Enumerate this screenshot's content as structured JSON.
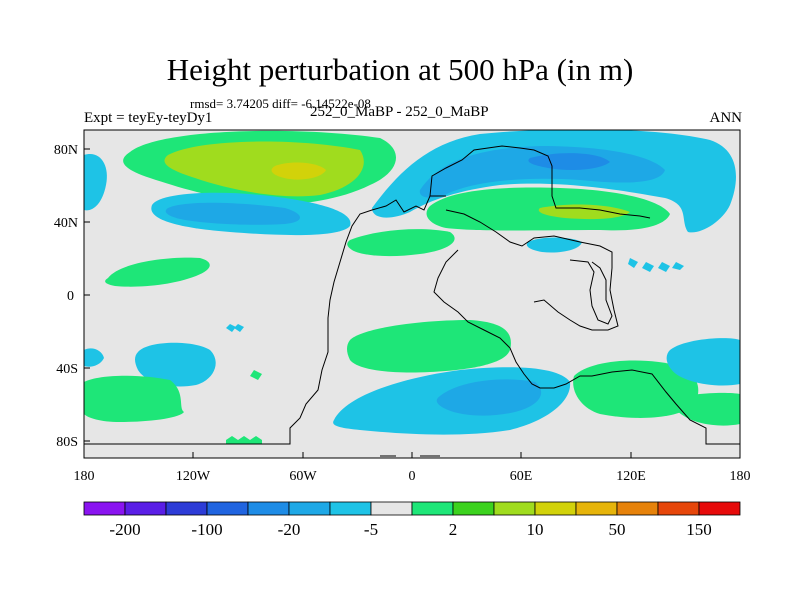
{
  "title": "Height perturbation at 500 hPa (in m)",
  "stats": "rmsd= 3.74205 diff= -6.14522e-08",
  "left_label": "Expt = teyEy-teyDy1",
  "center_label": "252_0_MaBP - 252_0_MaBP",
  "right_label": "ANN",
  "axes": {
    "x_ticks": [
      "180",
      "120W",
      "60W",
      "0",
      "60E",
      "120E",
      "180"
    ],
    "y_ticks": [
      "80N",
      "40N",
      "0",
      "40S",
      "80S"
    ]
  },
  "colorbar": {
    "colors": [
      "#8a14f0",
      "#5a1ee6",
      "#2d3cd7",
      "#2064e0",
      "#1e8ce6",
      "#1ea8e6",
      "#1ec3e6",
      "#e6e6e6",
      "#1ee678",
      "#3cd21e",
      "#a0dc1e",
      "#d2d20a",
      "#e6b40a",
      "#e6820a",
      "#e6460a",
      "#e60a0a"
    ],
    "labels": [
      "-200",
      "-100",
      "-20",
      "-5",
      "2",
      "10",
      "50",
      "150"
    ]
  },
  "legend_colors": {
    "neutral": "#e6e6e6",
    "light_blue": "#1ec3e6",
    "blue": "#1ea8e6",
    "deep_blue": "#1e8ce6",
    "green": "#1ee678",
    "yellow_green": "#a0dc1e",
    "yellow": "#d2d20a",
    "bright_green": "#3cd21e"
  }
}
